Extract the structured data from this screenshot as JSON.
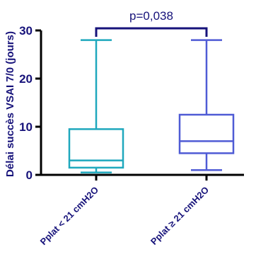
{
  "chart_data": {
    "type": "box",
    "ylabel": "Délai succès VSAI 7/0 (jours)",
    "xlabel": "",
    "ylim": [
      0,
      30
    ],
    "yticks": [
      0,
      10,
      20,
      30
    ],
    "categories": [
      "Pplat < 21 cmH2O",
      "Pplat ≥ 21 cmH2O"
    ],
    "series": [
      {
        "min": 0.5,
        "q1": 1.5,
        "median": 3,
        "q3": 9.5,
        "max": 28,
        "color": "#1fa8bd"
      },
      {
        "min": 1,
        "q1": 4.5,
        "median": 7,
        "q3": 12.5,
        "max": 28,
        "color": "#4f5bd5"
      }
    ],
    "annotations": [
      {
        "text": "p=0,038",
        "between": [
          0,
          1
        ],
        "color": "#16127a"
      }
    ],
    "axis_color": "#000000",
    "label_color": "#16127a"
  }
}
